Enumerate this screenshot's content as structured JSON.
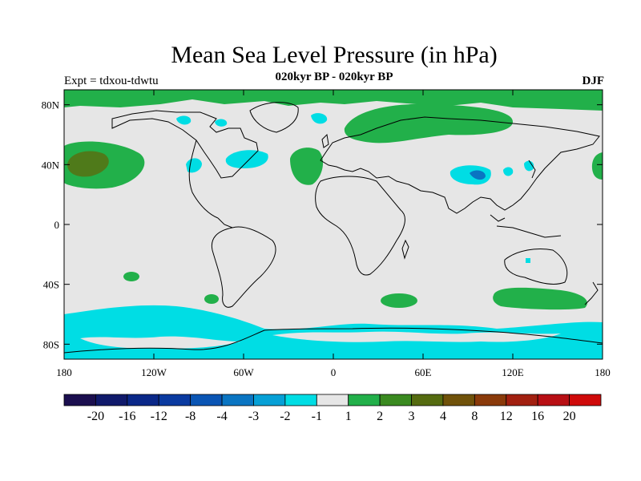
{
  "header": {
    "title": "Mean Sea Level Pressure (in hPa)",
    "subtitle": "020kyr BP - 020kyr BP",
    "left_label": "Expt = tdxou-tdwtu",
    "right_label": "DJF"
  },
  "map": {
    "lon_range": [
      180,
      540
    ],
    "lat_range": [
      -90,
      90
    ],
    "lon_ticks": [
      {
        "value": 180,
        "label": "180"
      },
      {
        "value": 240,
        "label": "120W"
      },
      {
        "value": 300,
        "label": "60W"
      },
      {
        "value": 360,
        "label": "0"
      },
      {
        "value": 420,
        "label": "60E"
      },
      {
        "value": 480,
        "label": "120E"
      },
      {
        "value": 540,
        "label": "180"
      }
    ],
    "lat_ticks": [
      {
        "value": 80,
        "label": "80N"
      },
      {
        "value": 40,
        "label": "40N"
      },
      {
        "value": 0,
        "label": "0"
      },
      {
        "value": -40,
        "label": "40S"
      },
      {
        "value": -80,
        "label": "80S"
      }
    ],
    "background_color": "#e6e6e6"
  },
  "colorbar": {
    "colors": [
      "#1b0f4f",
      "#101a6b",
      "#0a2888",
      "#0a3aa0",
      "#0a55b4",
      "#0a75c2",
      "#06a0d6",
      "#00dde4",
      "#e6e6e6",
      "#22b04a",
      "#3a8a20",
      "#556b10",
      "#70520a",
      "#8a3a0a",
      "#a22010",
      "#b80f14",
      "#cf0a0a"
    ],
    "labels": [
      "-20",
      "-16",
      "-12",
      "-8",
      "-4",
      "-3",
      "-2",
      "-1",
      "1",
      "2",
      "3",
      "4",
      "8",
      "12",
      "16",
      "20"
    ]
  }
}
